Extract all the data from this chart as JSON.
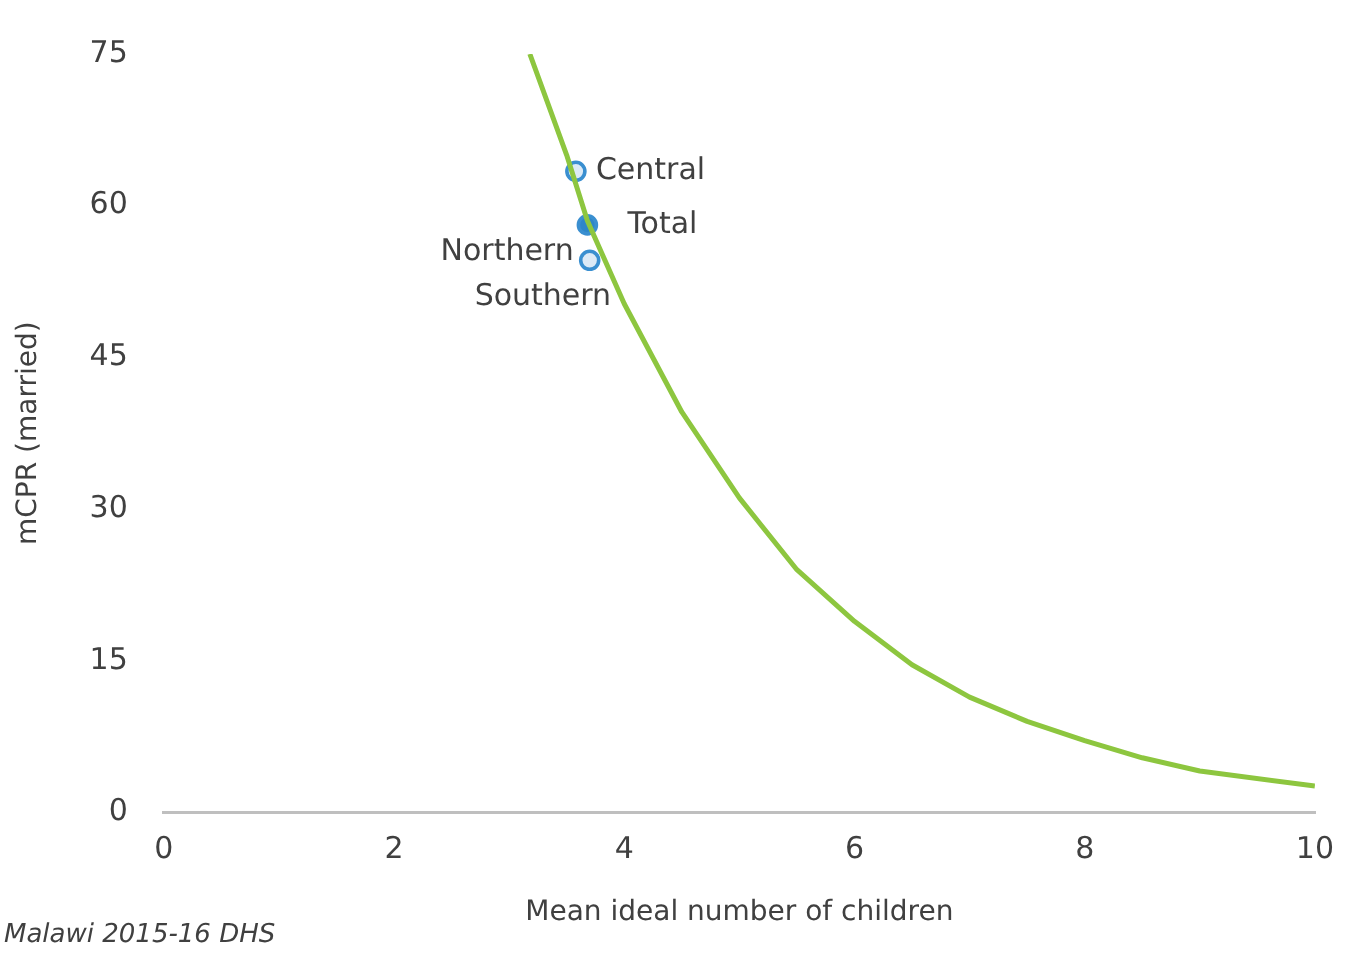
{
  "chart_data": {
    "type": "line",
    "xlabel": "Mean ideal number of children",
    "ylabel": "mCPR (married)",
    "xlim": [
      0,
      10
    ],
    "xticks": [
      0,
      2,
      4,
      6,
      8,
      10
    ],
    "ylim": [
      0,
      75
    ],
    "yticks": [
      0,
      15,
      30,
      45,
      60,
      75
    ],
    "grid": false,
    "legend": false,
    "series": [
      {
        "type": "line",
        "color": "#8dc63f",
        "marker": "none",
        "line_style": "solid",
        "x": [
          3.18,
          3.5,
          3.68,
          4.0,
          4.5,
          5.0,
          5.5,
          6.0,
          6.5,
          7.0,
          7.5,
          8.0,
          8.5,
          9.0,
          10.0
        ],
        "values": [
          75,
          65,
          58.5,
          50.3,
          39.6,
          31.1,
          24.0,
          18.9,
          14.6,
          11.4,
          9.0,
          7.1,
          5.4,
          4.1,
          2.6
        ]
      },
      {
        "type": "scatter",
        "color": "#3a8fd0",
        "colors": [
          "#dceaf6",
          "#2e86c8",
          "#dceaf6"
        ],
        "marker": "circle",
        "x": [
          3.58,
          3.68,
          3.7
        ],
        "values": [
          63.4,
          58.1,
          54.6
        ]
      }
    ],
    "annotations": [
      {
        "text": "Central",
        "x": 3.58,
        "y": 63.4
      },
      {
        "text": "Total",
        "x": 3.68,
        "y": 58.1
      },
      {
        "text": "Northern",
        "x": 3.7,
        "y": 54.6
      },
      {
        "text": "Southern",
        "x": 3.71,
        "y": 54.3
      },
      "Malawi 2015-16 DHS"
    ]
  }
}
